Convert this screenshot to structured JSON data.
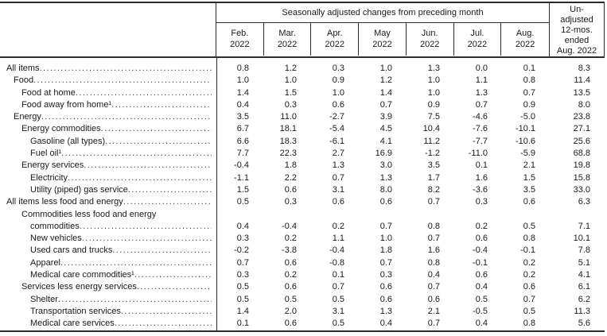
{
  "table": {
    "header": {
      "group_title": "Seasonally adjusted changes from preceding month",
      "months": [
        "Feb.",
        "Mar.",
        "Apr.",
        "May",
        "Jun.",
        "Jul.",
        "Aug."
      ],
      "year": "2022",
      "unadjusted_lines": [
        "Un-",
        "adjusted",
        "12-mos.",
        "ended",
        "Aug. 2022"
      ]
    },
    "rows": [
      {
        "label": "All items",
        "level": 0,
        "values": [
          "0.8",
          "1.2",
          "0.3",
          "1.0",
          "1.3",
          "0.0",
          "0.1",
          "8.3"
        ]
      },
      {
        "label": "Food",
        "level": 1,
        "values": [
          "1.0",
          "1.0",
          "0.9",
          "1.2",
          "1.0",
          "1.1",
          "0.8",
          "11.4"
        ]
      },
      {
        "label": "Food at home",
        "level": 2,
        "values": [
          "1.4",
          "1.5",
          "1.0",
          "1.4",
          "1.0",
          "1.3",
          "0.7",
          "13.5"
        ]
      },
      {
        "label": "Food away from home¹",
        "level": 2,
        "values": [
          "0.4",
          "0.3",
          "0.6",
          "0.7",
          "0.9",
          "0.7",
          "0.9",
          "8.0"
        ]
      },
      {
        "label": "Energy",
        "level": 1,
        "values": [
          "3.5",
          "11.0",
          "-2.7",
          "3.9",
          "7.5",
          "-4.6",
          "-5.0",
          "23.8"
        ]
      },
      {
        "label": "Energy commodities",
        "level": 2,
        "values": [
          "6.7",
          "18.1",
          "-5.4",
          "4.5",
          "10.4",
          "-7.6",
          "-10.1",
          "27.1"
        ]
      },
      {
        "label": "Gasoline (all types)",
        "level": 3,
        "values": [
          "6.6",
          "18.3",
          "-6.1",
          "4.1",
          "11.2",
          "-7.7",
          "-10.6",
          "25.6"
        ]
      },
      {
        "label": "Fuel oil¹",
        "level": 3,
        "values": [
          "7.7",
          "22.3",
          "2.7",
          "16.9",
          "-1.2",
          "-11.0",
          "-5.9",
          "68.8"
        ]
      },
      {
        "label": "Energy services",
        "level": 2,
        "values": [
          "-0.4",
          "1.8",
          "1.3",
          "3.0",
          "3.5",
          "0.1",
          "2.1",
          "19.8"
        ]
      },
      {
        "label": "Electricity",
        "level": 3,
        "values": [
          "-1.1",
          "2.2",
          "0.7",
          "1.3",
          "1.7",
          "1.6",
          "1.5",
          "15.8"
        ]
      },
      {
        "label": "Utility (piped) gas service",
        "level": 3,
        "values": [
          "1.5",
          "0.6",
          "3.1",
          "8.0",
          "8.2",
          "-3.6",
          "3.5",
          "33.0"
        ]
      },
      {
        "label": "All items less food and energy",
        "level": 0,
        "values": [
          "0.5",
          "0.3",
          "0.6",
          "0.6",
          "0.7",
          "0.3",
          "0.6",
          "6.3"
        ]
      },
      {
        "label": "Commodities less food and energy",
        "label2": "commodities",
        "level": 2,
        "values": [
          "0.4",
          "-0.4",
          "0.2",
          "0.7",
          "0.8",
          "0.2",
          "0.5",
          "7.1"
        ]
      },
      {
        "label": "New vehicles",
        "level": 3,
        "values": [
          "0.3",
          "0.2",
          "1.1",
          "1.0",
          "0.7",
          "0.6",
          "0.8",
          "10.1"
        ]
      },
      {
        "label": "Used cars and trucks",
        "level": 3,
        "values": [
          "-0.2",
          "-3.8",
          "-0.4",
          "1.8",
          "1.6",
          "-0.4",
          "-0.1",
          "7.8"
        ]
      },
      {
        "label": "Apparel",
        "level": 3,
        "values": [
          "0.7",
          "0.6",
          "-0.8",
          "0.7",
          "0.8",
          "-0.1",
          "0.2",
          "5.1"
        ]
      },
      {
        "label": "Medical care commodities¹",
        "level": 3,
        "values": [
          "0.3",
          "0.2",
          "0.1",
          "0.3",
          "0.4",
          "0.6",
          "0.2",
          "4.1"
        ]
      },
      {
        "label": "Services less energy services",
        "level": 2,
        "values": [
          "0.5",
          "0.6",
          "0.7",
          "0.6",
          "0.7",
          "0.4",
          "0.6",
          "6.1"
        ]
      },
      {
        "label": "Shelter",
        "level": 3,
        "values": [
          "0.5",
          "0.5",
          "0.5",
          "0.6",
          "0.6",
          "0.5",
          "0.7",
          "6.2"
        ]
      },
      {
        "label": "Transportation services",
        "level": 3,
        "values": [
          "1.4",
          "2.0",
          "3.1",
          "1.3",
          "2.1",
          "-0.5",
          "0.5",
          "11.3"
        ]
      },
      {
        "label": "Medical care services",
        "level": 3,
        "values": [
          "0.1",
          "0.6",
          "0.5",
          "0.4",
          "0.7",
          "0.4",
          "0.8",
          "5.6"
        ]
      }
    ]
  }
}
